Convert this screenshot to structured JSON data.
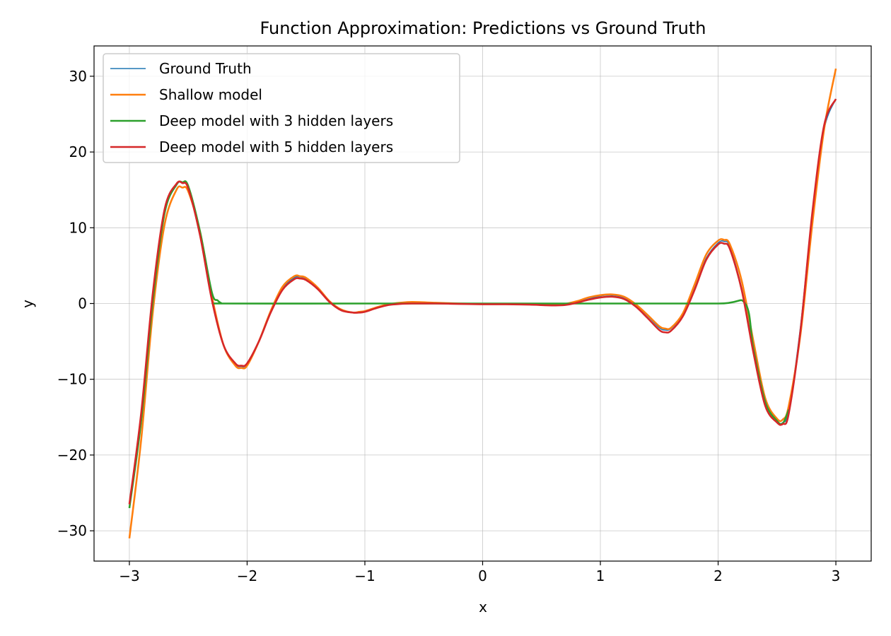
{
  "chart_data": {
    "type": "line",
    "title": "Function Approximation: Predictions vs Ground Truth",
    "xlabel": "x",
    "ylabel": "y",
    "xlim": [
      -3.3,
      3.3
    ],
    "ylim": [
      -34,
      34
    ],
    "xticks": [
      -3,
      -2,
      -1,
      0,
      1,
      2,
      3
    ],
    "xtick_labels": [
      "−3",
      "−2",
      "−1",
      "0",
      "1",
      "2",
      "3"
    ],
    "yticks": [
      -30,
      -20,
      -10,
      0,
      10,
      20,
      30
    ],
    "ytick_labels": [
      "−30",
      "−20",
      "−10",
      "0",
      "10",
      "20",
      "30"
    ],
    "grid": true,
    "legend_position": "upper-left",
    "series": [
      {
        "name": "Ground Truth",
        "color": "#1f77b4",
        "x": [
          -3.0,
          -2.9,
          -2.8,
          -2.7,
          -2.6,
          -2.55,
          -2.5,
          -2.4,
          -2.3,
          -2.2,
          -2.1,
          -2.05,
          -2.0,
          -1.9,
          -1.8,
          -1.7,
          -1.6,
          -1.55,
          -1.5,
          -1.4,
          -1.3,
          -1.2,
          -1.1,
          -1.05,
          -1.0,
          -0.9,
          -0.8,
          -0.7,
          -0.6,
          -0.4,
          -0.2,
          0.0,
          0.2,
          0.4,
          0.6,
          0.7,
          0.8,
          0.9,
          1.0,
          1.1,
          1.2,
          1.3,
          1.4,
          1.5,
          1.55,
          1.6,
          1.7,
          1.8,
          1.9,
          2.0,
          2.05,
          2.1,
          2.2,
          2.3,
          2.4,
          2.5,
          2.55,
          2.6,
          2.7,
          2.8,
          2.9,
          3.0
        ],
        "y": [
          -27.0,
          -15.0,
          1.0,
          12.0,
          15.6,
          16.0,
          15.3,
          9.0,
          0.5,
          -5.5,
          -8.0,
          -8.3,
          -8.0,
          -5.0,
          -1.0,
          2.0,
          3.4,
          3.5,
          3.3,
          2.0,
          0.3,
          -0.8,
          -1.2,
          -1.2,
          -1.1,
          -0.6,
          -0.2,
          0.0,
          0.1,
          0.05,
          -0.05,
          -0.05,
          -0.05,
          -0.1,
          -0.2,
          -0.15,
          0.2,
          0.6,
          1.0,
          1.1,
          0.8,
          -0.2,
          -1.6,
          -3.2,
          -3.5,
          -3.3,
          -1.5,
          2.0,
          6.0,
          8.0,
          8.2,
          7.5,
          2.0,
          -6.0,
          -13.0,
          -15.5,
          -15.7,
          -14.0,
          -3.0,
          12.0,
          23.0,
          27.0
        ]
      },
      {
        "name": "Shallow model",
        "color": "#ff7f0e",
        "x": [
          -3.0,
          -2.9,
          -2.8,
          -2.7,
          -2.6,
          -2.55,
          -2.5,
          -2.4,
          -2.3,
          -2.2,
          -2.1,
          -2.05,
          -2.0,
          -1.9,
          -1.8,
          -1.7,
          -1.6,
          -1.55,
          -1.5,
          -1.4,
          -1.3,
          -1.2,
          -1.1,
          -1.05,
          -1.0,
          -0.9,
          -0.8,
          -0.7,
          -0.6,
          -0.4,
          -0.2,
          0.0,
          0.2,
          0.4,
          0.6,
          0.7,
          0.8,
          0.9,
          1.0,
          1.1,
          1.2,
          1.3,
          1.4,
          1.5,
          1.55,
          1.6,
          1.7,
          1.8,
          1.9,
          2.0,
          2.05,
          2.1,
          2.2,
          2.3,
          2.4,
          2.5,
          2.55,
          2.6,
          2.7,
          2.8,
          2.9,
          3.0
        ],
        "y": [
          -31.0,
          -18.0,
          -1.0,
          10.5,
          15.0,
          15.3,
          14.8,
          9.5,
          1.0,
          -5.5,
          -8.2,
          -8.5,
          -8.2,
          -5.0,
          -1.0,
          2.2,
          3.6,
          3.6,
          3.4,
          2.1,
          0.3,
          -0.8,
          -1.2,
          -1.1,
          -1.0,
          -0.5,
          -0.1,
          0.1,
          0.2,
          0.1,
          0.0,
          -0.05,
          -0.05,
          -0.05,
          -0.1,
          -0.05,
          0.3,
          0.8,
          1.1,
          1.2,
          0.9,
          -0.1,
          -1.5,
          -3.0,
          -3.3,
          -3.2,
          -1.3,
          2.5,
          6.5,
          8.3,
          8.4,
          7.8,
          3.0,
          -5.0,
          -12.5,
          -15.2,
          -15.3,
          -13.5,
          -4.0,
          10.5,
          23.0,
          31.0
        ]
      },
      {
        "name": "Deep model with 3 hidden layers",
        "color": "#2ca02c",
        "x": [
          -3.0,
          -2.9,
          -2.8,
          -2.7,
          -2.6,
          -2.55,
          -2.5,
          -2.4,
          -2.3,
          -2.25,
          -2.22,
          -2.2,
          -1.0,
          0.0,
          1.0,
          2.0,
          2.23,
          2.3,
          2.4,
          2.5,
          2.55,
          2.6
        ],
        "y": [
          -27.0,
          -15.5,
          0.5,
          12.0,
          15.7,
          16.0,
          15.5,
          9.5,
          1.5,
          0.4,
          0.05,
          0.0,
          0.0,
          0.0,
          0.0,
          0.0,
          0.0,
          -6.0,
          -13.0,
          -15.5,
          -15.8,
          -14.0
        ]
      },
      {
        "name": "Deep model with 5 hidden layers",
        "color": "#d62728",
        "x": [
          -3.0,
          -2.9,
          -2.8,
          -2.7,
          -2.6,
          -2.55,
          -2.5,
          -2.4,
          -2.3,
          -2.2,
          -2.1,
          -2.05,
          -2.0,
          -1.9,
          -1.8,
          -1.7,
          -1.6,
          -1.55,
          -1.5,
          -1.4,
          -1.3,
          -1.2,
          -1.1,
          -1.05,
          -1.0,
          -0.9,
          -0.8,
          -0.7,
          -0.6,
          -0.4,
          -0.2,
          0.0,
          0.2,
          0.4,
          0.6,
          0.7,
          0.8,
          0.9,
          1.0,
          1.1,
          1.2,
          1.3,
          1.4,
          1.5,
          1.55,
          1.6,
          1.7,
          1.8,
          1.9,
          2.0,
          2.05,
          2.1,
          2.2,
          2.3,
          2.4,
          2.5,
          2.55,
          2.6,
          2.7,
          2.8,
          2.9,
          3.0
        ],
        "y": [
          -26.5,
          -14.5,
          1.5,
          12.5,
          15.8,
          15.9,
          15.2,
          9.0,
          0.5,
          -5.5,
          -7.9,
          -8.2,
          -7.9,
          -5.0,
          -1.2,
          1.8,
          3.2,
          3.3,
          3.1,
          1.9,
          0.2,
          -0.9,
          -1.2,
          -1.2,
          -1.1,
          -0.6,
          -0.2,
          -0.05,
          0.0,
          0.0,
          -0.05,
          -0.1,
          -0.1,
          -0.15,
          -0.25,
          -0.2,
          0.1,
          0.5,
          0.8,
          0.9,
          0.6,
          -0.4,
          -1.9,
          -3.5,
          -3.8,
          -3.6,
          -1.7,
          1.8,
          5.8,
          7.8,
          7.9,
          7.2,
          1.8,
          -6.5,
          -13.5,
          -15.7,
          -15.9,
          -14.5,
          -3.5,
          12.0,
          23.5,
          27.0
        ]
      }
    ]
  }
}
